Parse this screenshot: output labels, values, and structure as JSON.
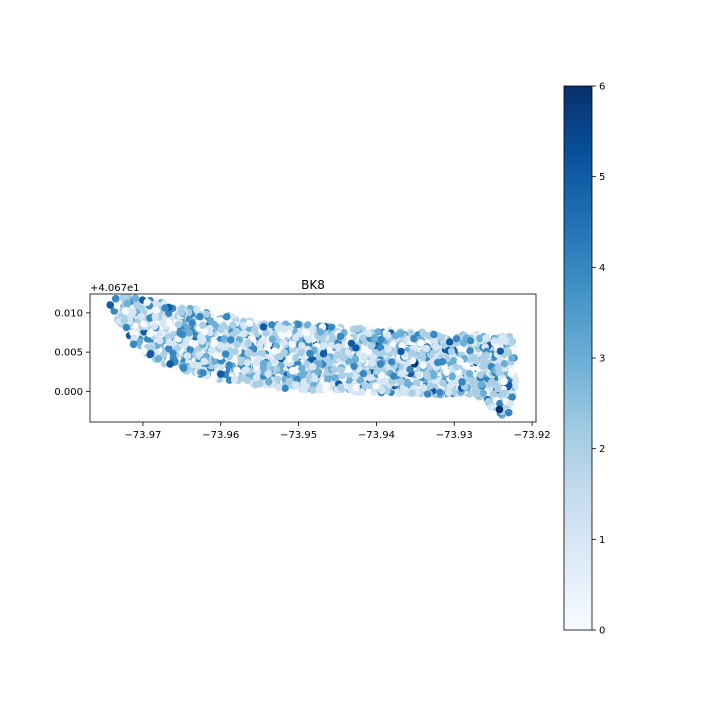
{
  "chart_data": {
    "type": "scatter",
    "title": "BK8",
    "xlabel": "",
    "ylabel": "",
    "xlim": [
      -73.9768,
      -73.9195
    ],
    "ylim": [
      -0.0039,
      0.0124
    ],
    "x_ticks": [
      -73.97,
      -73.96,
      -73.95,
      -73.94,
      -73.93,
      -73.92
    ],
    "x_tick_labels": [
      "−73.97",
      "−73.96",
      "−73.95",
      "−73.94",
      "−73.93",
      "−73.92"
    ],
    "y_ticks": [
      0.0,
      0.005,
      0.01
    ],
    "y_tick_labels": [
      "0.000",
      "0.005",
      "0.010"
    ],
    "y_offset_label": "+4.067e1",
    "grid": false,
    "colormap": "Blues",
    "colorbar": {
      "range": [
        0,
        6
      ],
      "ticks": [
        0,
        1,
        2,
        3,
        4,
        5,
        6
      ],
      "tick_labels": [
        "0",
        "1",
        "2",
        "3",
        "4",
        "5",
        "6"
      ]
    },
    "region_outline": [
      [
        -73.9745,
        0.0108
      ],
      [
        -73.973,
        0.0122
      ],
      [
        -73.968,
        0.0114
      ],
      [
        -73.961,
        0.01
      ],
      [
        -73.954,
        0.0088
      ],
      [
        -73.948,
        0.0085
      ],
      [
        -73.94,
        0.0079
      ],
      [
        -73.93,
        0.0073
      ],
      [
        -73.9225,
        0.007
      ],
      [
        -73.922,
        0.001
      ],
      [
        -73.9228,
        -0.0018
      ],
      [
        -73.924,
        -0.0032
      ],
      [
        -73.9255,
        -0.0018
      ],
      [
        -73.926,
        -0.0008
      ],
      [
        -73.93,
        -0.0005
      ],
      [
        -73.94,
        -0.0002
      ],
      [
        -73.95,
        0.0002
      ],
      [
        -73.958,
        0.0008
      ],
      [
        -73.963,
        0.0022
      ],
      [
        -73.9668,
        0.0032
      ],
      [
        -73.97,
        0.005
      ],
      [
        -73.9725,
        0.008
      ]
    ],
    "sample_points": [
      {
        "x": -73.9742,
        "y": 0.011,
        "v": 5
      },
      {
        "x": -73.9735,
        "y": 0.0118,
        "v": 4
      },
      {
        "x": -73.972,
        "y": 0.0112,
        "v": 3
      },
      {
        "x": -73.9712,
        "y": 0.006,
        "v": 4
      },
      {
        "x": -73.969,
        "y": 0.0048,
        "v": 5
      },
      {
        "x": -73.9665,
        "y": 0.0035,
        "v": 5
      },
      {
        "x": -73.9648,
        "y": 0.003,
        "v": 4
      },
      {
        "x": -73.96,
        "y": 0.0022,
        "v": 5
      },
      {
        "x": -73.9545,
        "y": 0.0082,
        "v": 5
      },
      {
        "x": -73.9468,
        "y": 0.0048,
        "v": 5
      },
      {
        "x": -73.9395,
        "y": 0.0035,
        "v": 4
      },
      {
        "x": -73.929,
        "y": 0.0012,
        "v": 4
      },
      {
        "x": -73.9242,
        "y": -0.0023,
        "v": 6
      },
      {
        "x": -73.923,
        "y": -0.0027,
        "v": 4
      }
    ]
  }
}
